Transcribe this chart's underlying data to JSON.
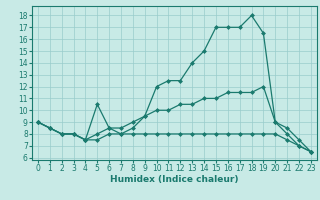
{
  "title": "",
  "xlabel": "Humidex (Indice chaleur)",
  "bg_color": "#c8eae6",
  "grid_color": "#99cccc",
  "line_color": "#1a7a6e",
  "xlim": [
    -0.5,
    23.5
  ],
  "ylim": [
    5.8,
    18.8
  ],
  "yticks": [
    6,
    7,
    8,
    9,
    10,
    11,
    12,
    13,
    14,
    15,
    16,
    17,
    18
  ],
  "xticks": [
    0,
    1,
    2,
    3,
    4,
    5,
    6,
    7,
    8,
    9,
    10,
    11,
    12,
    13,
    14,
    15,
    16,
    17,
    18,
    19,
    20,
    21,
    22,
    23
  ],
  "y_main": [
    9,
    8.5,
    8,
    8,
    7.5,
    10.5,
    8.5,
    8.0,
    8.5,
    9.5,
    12.0,
    12.5,
    12.5,
    14.0,
    15.0,
    17.0,
    17.0,
    17.0,
    18.0,
    16.5,
    9.0,
    8.0,
    7.0,
    6.5
  ],
  "y_low": [
    9,
    8.5,
    8,
    8,
    7.5,
    7.5,
    8.0,
    8.0,
    8.0,
    8.0,
    8.0,
    8.0,
    8.0,
    8.0,
    8.0,
    8.0,
    8.0,
    8.0,
    8.0,
    8.0,
    8.0,
    7.5,
    7.0,
    6.5
  ],
  "y_mid": [
    9,
    8.5,
    8,
    8,
    7.5,
    8.0,
    8.5,
    8.5,
    9.0,
    9.5,
    10.0,
    10.0,
    10.5,
    10.5,
    11.0,
    11.0,
    11.5,
    11.5,
    11.5,
    12.0,
    9.0,
    8.5,
    7.5,
    6.5
  ],
  "markersize": 2.5,
  "linewidth": 0.9,
  "tick_fontsize": 5.5,
  "xlabel_fontsize": 6.5
}
